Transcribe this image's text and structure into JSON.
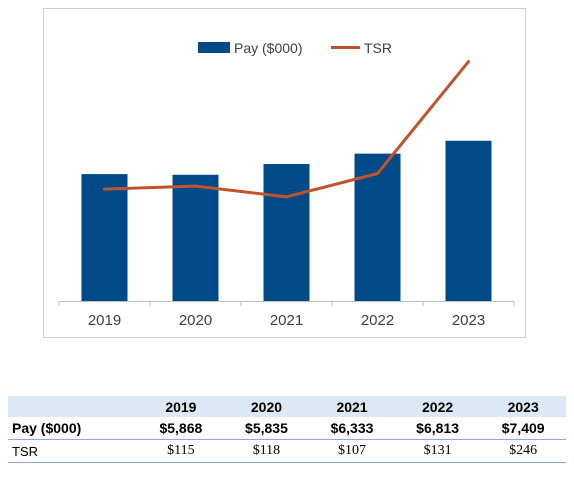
{
  "chart_data": {
    "type": "bar",
    "categories": [
      "2019",
      "2020",
      "2021",
      "2022",
      "2023"
    ],
    "series": [
      {
        "name": "Pay ($000)",
        "type": "bar",
        "axis": "left",
        "values": [
          5868,
          5835,
          6333,
          6813,
          7409
        ]
      },
      {
        "name": "TSR",
        "type": "line",
        "axis": "right",
        "values": [
          115,
          118,
          107,
          131,
          246
        ]
      }
    ],
    "ylim_left": [
      0,
      13500
    ],
    "ylim_right": [
      0,
      300
    ],
    "legend": "top-center",
    "grid": false,
    "colors": {
      "bar": "#004b87",
      "line": "#c0522c"
    }
  },
  "table": {
    "headers": [
      "",
      "2019",
      "2020",
      "2021",
      "2022",
      "2023"
    ],
    "rows": [
      {
        "label": "Pay ($000)",
        "values": [
          "$5,868",
          "$5,835",
          "$6,333",
          "$6,813",
          "$7,409"
        ]
      },
      {
        "label": "TSR",
        "values": [
          "$115",
          "$118",
          "$107",
          "$131",
          "$246"
        ]
      }
    ]
  }
}
